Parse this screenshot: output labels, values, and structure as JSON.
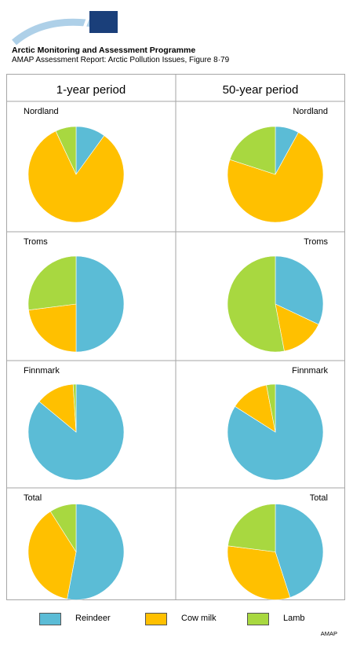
{
  "header": {
    "logo_text": "AMAP",
    "org_name": "Arctic Monitoring and Assessment Programme",
    "report_line": "AMAP Assessment Report: Arctic Pollution Issues, Figure 8·79"
  },
  "colors": {
    "reindeer": "#5bbcd6",
    "cow_milk": "#ffc000",
    "lamb": "#a8d840",
    "divider": "#a6a6a6"
  },
  "chart_data": {
    "type": "pie",
    "columns": [
      "1-year period",
      "50-year period"
    ],
    "categories": [
      "Reindeer",
      "Cow milk",
      "Lamb"
    ],
    "regions": [
      {
        "name": "Nordland",
        "pies": [
          {
            "period": "1-year period",
            "values": [
              10,
              83,
              7
            ]
          },
          {
            "period": "50-year period",
            "values": [
              8,
              72,
              20
            ]
          }
        ]
      },
      {
        "name": "Troms",
        "pies": [
          {
            "period": "1-year period",
            "values": [
              50,
              23,
              27
            ]
          },
          {
            "period": "50-year period",
            "values": [
              32,
              15,
              53
            ]
          }
        ]
      },
      {
        "name": "Finnmark",
        "pies": [
          {
            "period": "1-year period",
            "values": [
              86,
              13,
              1
            ]
          },
          {
            "period": "50-year period",
            "values": [
              84,
              13,
              3
            ]
          }
        ]
      },
      {
        "name": "Total",
        "pies": [
          {
            "period": "1-year period",
            "values": [
              53,
              38,
              9
            ]
          },
          {
            "period": "50-year period",
            "values": [
              45,
              32,
              23
            ]
          }
        ]
      }
    ]
  },
  "legend": [
    {
      "label": "Reindeer",
      "color": "#5bbcd6"
    },
    {
      "label": "Cow milk",
      "color": "#ffc000"
    },
    {
      "label": "Lamb",
      "color": "#a8d840"
    }
  ],
  "footer_label": "AMAP"
}
